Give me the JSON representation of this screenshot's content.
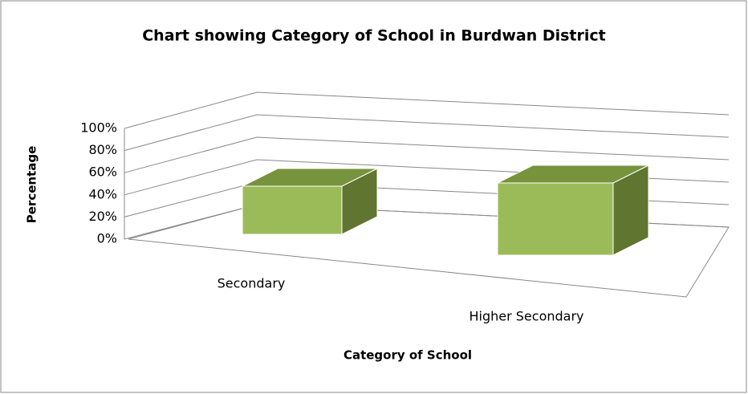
{
  "chart_data": {
    "type": "bar3d",
    "title": "Chart showing Category of School in Burdwan District",
    "x_label": "Category of School",
    "y_label": "Percentage",
    "categories": [
      "Secondary",
      "Higher Secondary"
    ],
    "values": [
      40,
      60
    ],
    "color": "#9bbb59",
    "ylim": [
      0,
      100
    ],
    "yticks": [
      {
        "value": 0,
        "label": "0%"
      },
      {
        "value": 20,
        "label": "20%"
      },
      {
        "value": 40,
        "label": "40%"
      },
      {
        "value": 60,
        "label": "60%"
      },
      {
        "value": 80,
        "label": "80%"
      },
      {
        "value": 100,
        "label": "100%"
      }
    ],
    "grid": true
  }
}
